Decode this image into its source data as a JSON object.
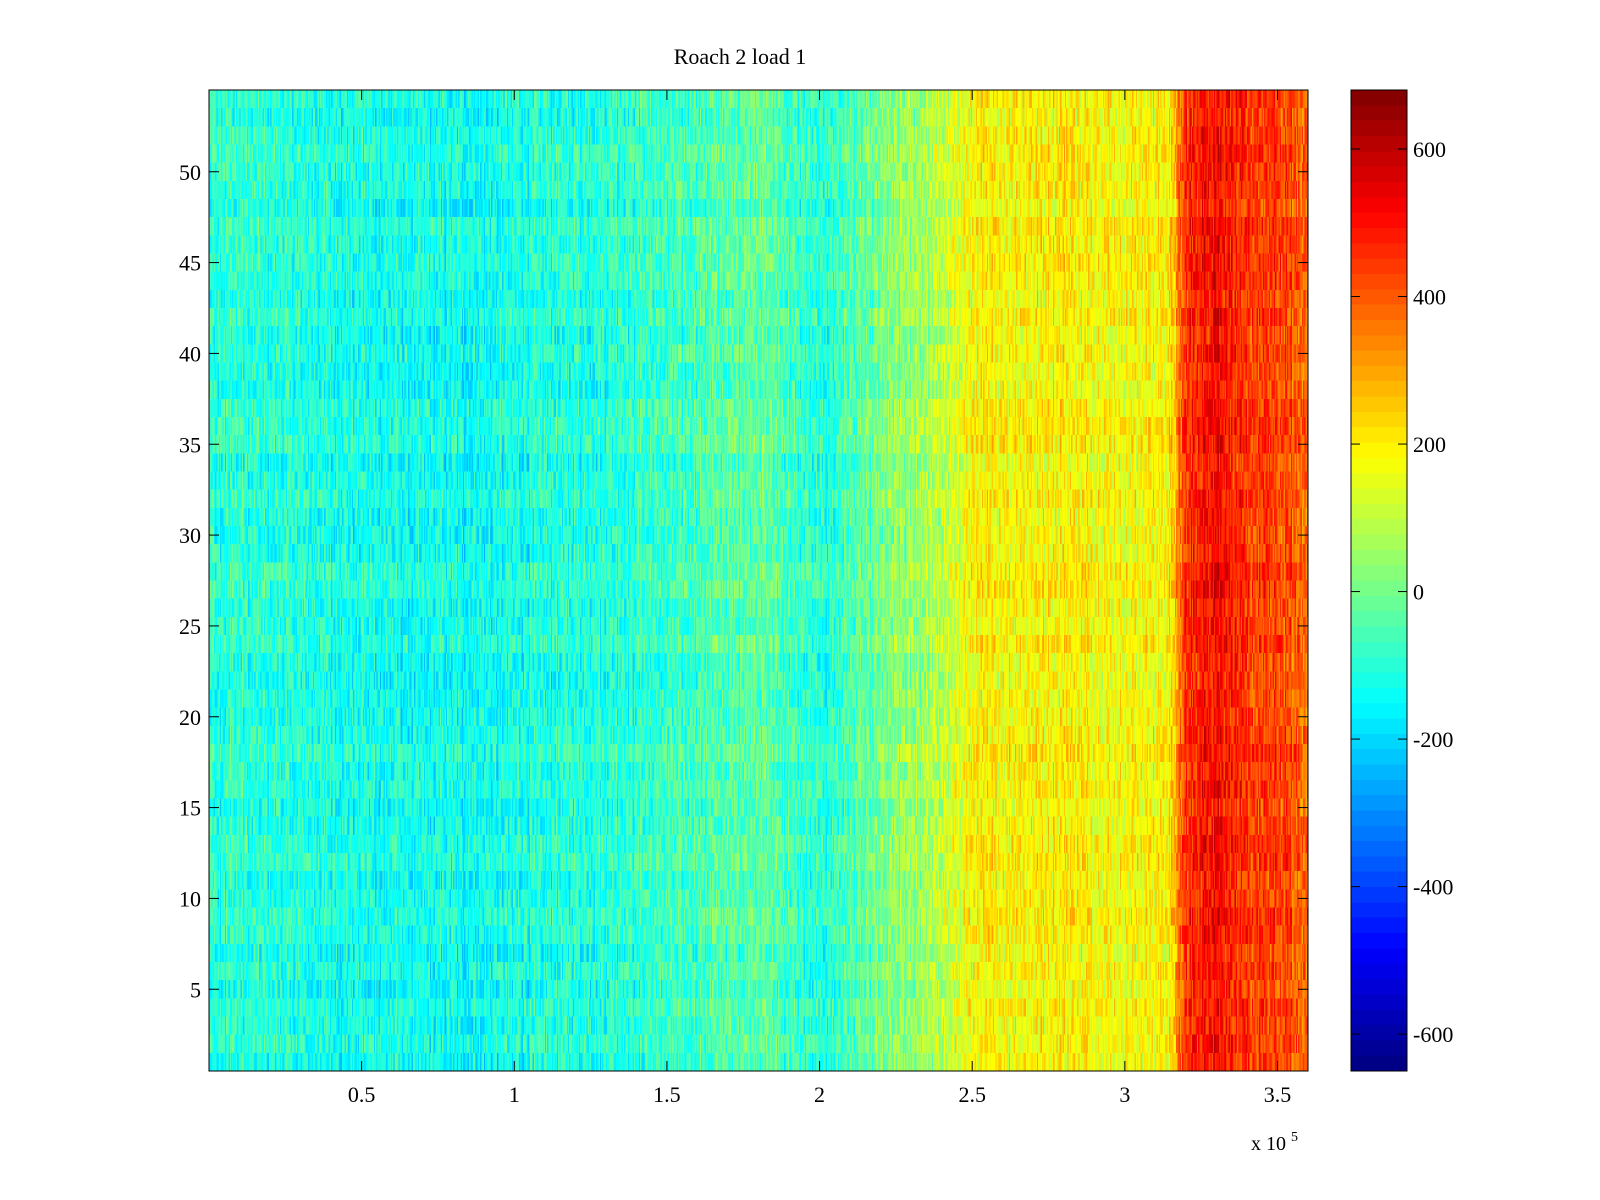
{
  "chart_data": {
    "type": "heatmap",
    "title": "Roach 2 load 1",
    "xlabel": "",
    "ylabel": "",
    "x_exponent_label": {
      "base": "x 10",
      "exp": "5"
    },
    "xlim": [
      0,
      3.6
    ],
    "ylim": [
      0.5,
      54.5
    ],
    "x_ticks": [
      0.5,
      1,
      1.5,
      2,
      2.5,
      3,
      3.5
    ],
    "x_tick_labels": [
      "0.5",
      "1",
      "1.5",
      "2",
      "2.5",
      "3",
      "3.5"
    ],
    "y_ticks": [
      5,
      10,
      15,
      20,
      25,
      30,
      35,
      40,
      45,
      50
    ],
    "y_tick_labels": [
      "5",
      "10",
      "15",
      "20",
      "25",
      "30",
      "35",
      "40",
      "45",
      "50"
    ],
    "rows": 54,
    "colormap": "jet",
    "color_range": [
      -650,
      680
    ],
    "colorbar_ticks": [
      600,
      400,
      200,
      0,
      -200,
      -400,
      -600
    ],
    "colorbar_tick_labels": [
      "600",
      "400",
      "200",
      "0",
      "-200",
      "-400",
      "-600"
    ],
    "column_profile": {
      "x": [
        0,
        0.3,
        0.6,
        0.9,
        1.2,
        1.5,
        1.8,
        2.0,
        2.2,
        2.4,
        2.5,
        2.8,
        3.0,
        3.15,
        3.2,
        3.3,
        3.4,
        3.5,
        3.6
      ],
      "mean_value": [
        -90,
        -110,
        -130,
        -135,
        -105,
        -80,
        -20,
        -110,
        0,
        90,
        180,
        200,
        170,
        200,
        450,
        520,
        430,
        430,
        380
      ]
    },
    "noise_amplitude": 90,
    "grid": false,
    "colorbar": "right"
  }
}
